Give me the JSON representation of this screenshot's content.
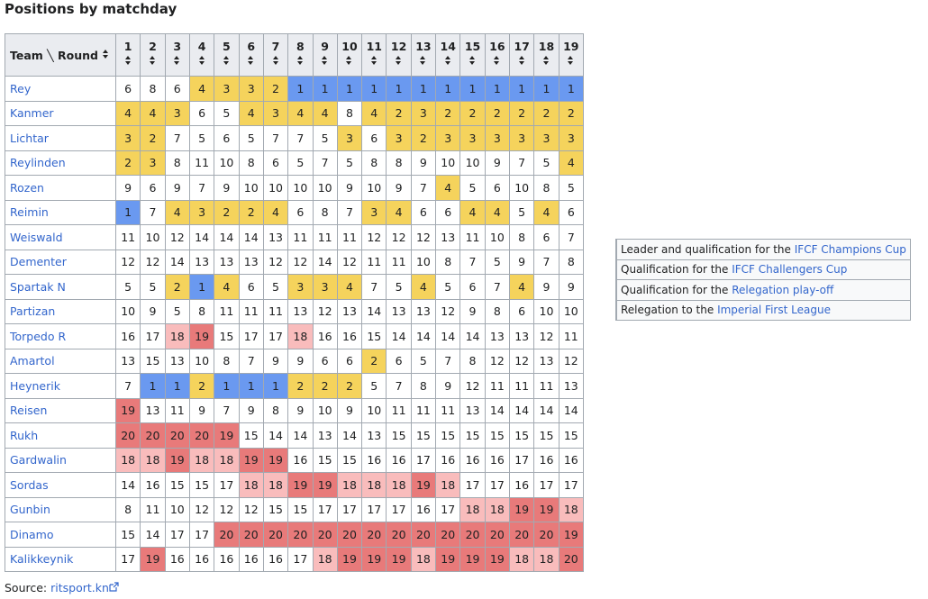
{
  "title": "Positions by matchday",
  "table": {
    "header": {
      "team": "Team",
      "round": "Round",
      "rounds": [
        1,
        2,
        3,
        4,
        5,
        6,
        7,
        8,
        9,
        10,
        11,
        12,
        13,
        14,
        15,
        16,
        17,
        18,
        19
      ]
    },
    "rows": [
      {
        "team": "Rey",
        "positions": [
          6,
          8,
          6,
          4,
          3,
          3,
          2,
          1,
          1,
          1,
          1,
          1,
          1,
          1,
          1,
          1,
          1,
          1,
          1
        ],
        "status": [
          null,
          null,
          null,
          1,
          1,
          1,
          1,
          0,
          0,
          0,
          0,
          0,
          0,
          0,
          0,
          0,
          0,
          0,
          0
        ]
      },
      {
        "team": "Kanmer",
        "positions": [
          4,
          4,
          3,
          6,
          5,
          4,
          3,
          4,
          4,
          8,
          4,
          2,
          3,
          2,
          2,
          2,
          2,
          2,
          2
        ],
        "status": [
          1,
          1,
          1,
          null,
          null,
          1,
          1,
          1,
          1,
          null,
          1,
          1,
          1,
          1,
          1,
          1,
          1,
          1,
          1
        ]
      },
      {
        "team": "Lichtar",
        "positions": [
          3,
          2,
          7,
          5,
          6,
          5,
          7,
          7,
          5,
          3,
          6,
          3,
          2,
          3,
          3,
          3,
          3,
          3,
          3
        ],
        "status": [
          1,
          1,
          null,
          null,
          null,
          null,
          null,
          null,
          null,
          1,
          null,
          1,
          1,
          1,
          1,
          1,
          1,
          1,
          1
        ]
      },
      {
        "team": "Reylinden",
        "positions": [
          2,
          3,
          8,
          11,
          10,
          8,
          6,
          5,
          7,
          5,
          8,
          8,
          9,
          10,
          10,
          9,
          7,
          5,
          4
        ],
        "status": [
          1,
          1,
          null,
          null,
          null,
          null,
          null,
          null,
          null,
          null,
          null,
          null,
          null,
          null,
          null,
          null,
          null,
          null,
          1
        ]
      },
      {
        "team": "Rozen",
        "positions": [
          9,
          6,
          9,
          7,
          9,
          10,
          10,
          10,
          10,
          9,
          10,
          9,
          7,
          4,
          5,
          6,
          10,
          8,
          5
        ],
        "status": [
          null,
          null,
          null,
          null,
          null,
          null,
          null,
          null,
          null,
          null,
          null,
          null,
          null,
          1,
          null,
          null,
          null,
          null,
          null
        ]
      },
      {
        "team": "Reimin",
        "positions": [
          1,
          7,
          4,
          3,
          2,
          2,
          4,
          6,
          8,
          7,
          3,
          4,
          6,
          6,
          4,
          4,
          5,
          4,
          6
        ],
        "status": [
          0,
          null,
          1,
          1,
          1,
          1,
          1,
          null,
          null,
          null,
          1,
          1,
          null,
          null,
          1,
          1,
          null,
          1,
          null
        ]
      },
      {
        "team": "Weiswald",
        "positions": [
          11,
          10,
          12,
          14,
          14,
          14,
          13,
          11,
          11,
          11,
          12,
          12,
          12,
          13,
          11,
          10,
          8,
          6,
          7
        ]
      },
      {
        "team": "Dementer",
        "positions": [
          12,
          12,
          14,
          13,
          13,
          13,
          12,
          12,
          14,
          12,
          11,
          11,
          10,
          8,
          7,
          5,
          9,
          7,
          8
        ]
      },
      {
        "team": "Spartak N",
        "positions": [
          5,
          5,
          2,
          1,
          4,
          6,
          5,
          3,
          3,
          4,
          7,
          5,
          4,
          5,
          6,
          7,
          4,
          9,
          9
        ],
        "status": [
          null,
          null,
          1,
          0,
          1,
          null,
          null,
          1,
          1,
          1,
          null,
          null,
          1,
          null,
          null,
          null,
          1,
          null,
          null
        ]
      },
      {
        "team": "Partizan",
        "positions": [
          10,
          9,
          5,
          8,
          11,
          11,
          11,
          13,
          12,
          13,
          14,
          13,
          13,
          12,
          9,
          8,
          6,
          10,
          10
        ]
      },
      {
        "team": "Torpedo R",
        "positions": [
          16,
          17,
          18,
          19,
          15,
          17,
          17,
          18,
          16,
          16,
          15,
          14,
          14,
          14,
          14,
          13,
          13,
          12,
          11
        ],
        "status": [
          null,
          null,
          2,
          3,
          null,
          null,
          null,
          2,
          null,
          null,
          null,
          null,
          null,
          null,
          null,
          null,
          null,
          null,
          null
        ]
      },
      {
        "team": "Amartol",
        "positions": [
          13,
          15,
          13,
          10,
          8,
          7,
          9,
          9,
          6,
          6,
          2,
          6,
          5,
          7,
          8,
          12,
          12,
          13,
          12
        ],
        "status": [
          null,
          null,
          null,
          null,
          null,
          null,
          null,
          null,
          null,
          null,
          1,
          null,
          null,
          null,
          null,
          null,
          null,
          null,
          null
        ]
      },
      {
        "team": "Heynerik",
        "positions": [
          7,
          1,
          1,
          2,
          1,
          1,
          1,
          2,
          2,
          2,
          5,
          7,
          8,
          9,
          12,
          11,
          11,
          11,
          13
        ],
        "status": [
          null,
          0,
          0,
          1,
          0,
          0,
          0,
          1,
          1,
          1,
          null,
          null,
          null,
          null,
          null,
          null,
          null,
          null,
          null
        ]
      },
      {
        "team": "Reisen",
        "positions": [
          19,
          13,
          11,
          9,
          7,
          9,
          8,
          9,
          10,
          9,
          10,
          11,
          11,
          11,
          13,
          14,
          14,
          14,
          14
        ],
        "status": [
          3,
          null,
          null,
          null,
          null,
          null,
          null,
          null,
          null,
          null,
          null,
          null,
          null,
          null,
          null,
          null,
          null,
          null,
          null
        ]
      },
      {
        "team": "Rukh",
        "positions": [
          20,
          20,
          20,
          20,
          19,
          15,
          14,
          14,
          13,
          14,
          13,
          15,
          15,
          15,
          15,
          15,
          15,
          15,
          15
        ],
        "status": [
          3,
          3,
          3,
          3,
          3,
          null,
          null,
          null,
          null,
          null,
          null,
          null,
          null,
          null,
          null,
          null,
          null,
          null,
          null
        ]
      },
      {
        "team": "Gardwalin",
        "positions": [
          18,
          18,
          19,
          18,
          18,
          19,
          19,
          16,
          15,
          15,
          16,
          16,
          17,
          16,
          16,
          16,
          17,
          16,
          16
        ],
        "status": [
          2,
          2,
          3,
          2,
          2,
          3,
          3,
          null,
          null,
          null,
          null,
          null,
          null,
          null,
          null,
          null,
          null,
          null,
          null
        ]
      },
      {
        "team": "Sordas",
        "positions": [
          14,
          16,
          15,
          15,
          17,
          18,
          18,
          19,
          19,
          18,
          18,
          18,
          19,
          18,
          17,
          17,
          16,
          17,
          17
        ],
        "status": [
          null,
          null,
          null,
          null,
          null,
          2,
          2,
          3,
          3,
          2,
          2,
          2,
          3,
          2,
          null,
          null,
          null,
          null,
          null
        ]
      },
      {
        "team": "Gunbin",
        "positions": [
          8,
          11,
          10,
          12,
          12,
          12,
          15,
          15,
          17,
          17,
          17,
          17,
          16,
          17,
          18,
          18,
          19,
          19,
          18
        ],
        "status": [
          null,
          null,
          null,
          null,
          null,
          null,
          null,
          null,
          null,
          null,
          null,
          null,
          null,
          null,
          2,
          2,
          3,
          3,
          2
        ]
      },
      {
        "team": "Dinamo",
        "positions": [
          15,
          14,
          17,
          17,
          20,
          20,
          20,
          20,
          20,
          20,
          20,
          20,
          20,
          20,
          20,
          20,
          20,
          20,
          19
        ],
        "status": [
          null,
          null,
          null,
          null,
          3,
          3,
          3,
          3,
          3,
          3,
          3,
          3,
          3,
          3,
          3,
          3,
          3,
          3,
          3
        ]
      },
      {
        "team": "Kalikkeynik",
        "positions": [
          17,
          19,
          16,
          16,
          16,
          16,
          16,
          17,
          18,
          19,
          19,
          19,
          18,
          19,
          19,
          19,
          18,
          18,
          20
        ],
        "status": [
          null,
          3,
          null,
          null,
          null,
          null,
          null,
          null,
          2,
          3,
          3,
          3,
          2,
          3,
          3,
          3,
          2,
          2,
          3
        ]
      }
    ]
  },
  "legend": [
    {
      "color": "#6a99f0",
      "text": "Leader and qualification for the",
      "link": "IFCF Champions Cup"
    },
    {
      "color": "#f5d35c",
      "text": "Qualification for the",
      "link": "IFCF Challengers Cup"
    },
    {
      "color": "#f9bcbc",
      "text": "Qualification for the",
      "link": "Relegation play-off"
    },
    {
      "color": "#e87a7a",
      "text": "Relegation to the",
      "link": "Imperial First League"
    }
  ],
  "source": {
    "label": "Source:",
    "link": "ritsport.kn"
  }
}
